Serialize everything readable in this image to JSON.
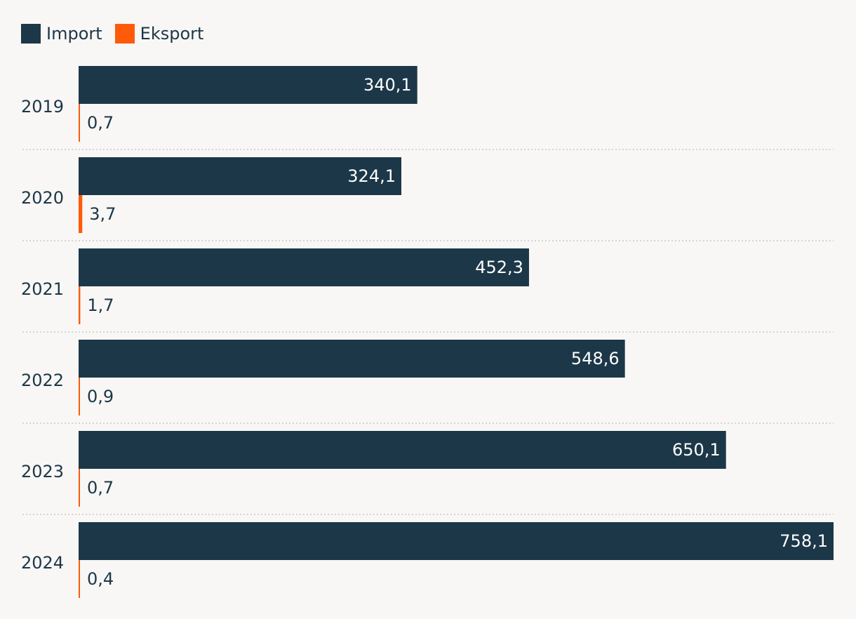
{
  "legend": {
    "items": [
      {
        "label": "Import",
        "color": "#1c3748"
      },
      {
        "label": "Eksport",
        "color": "#ff5a0a"
      }
    ]
  },
  "chart_data": {
    "type": "bar",
    "orientation": "horizontal",
    "categories": [
      "2019",
      "2020",
      "2021",
      "2022",
      "2023",
      "2024"
    ],
    "series": [
      {
        "name": "Import",
        "color": "#1c3748",
        "values": [
          340.1,
          324.1,
          452.3,
          548.6,
          650.1,
          758.1
        ],
        "labels": [
          "340,1",
          "324,1",
          "452,3",
          "548,6",
          "650,1",
          "758,1"
        ]
      },
      {
        "name": "Eksport",
        "color": "#ff5a0a",
        "values": [
          0.7,
          3.7,
          1.7,
          0.9,
          0.7,
          0.4
        ],
        "labels": [
          "0,7",
          "3,7",
          "1,7",
          "0,9",
          "0,7",
          "0,4"
        ]
      }
    ],
    "xlim": [
      0,
      758.1
    ],
    "legend_position": "top-left",
    "grid": false
  }
}
